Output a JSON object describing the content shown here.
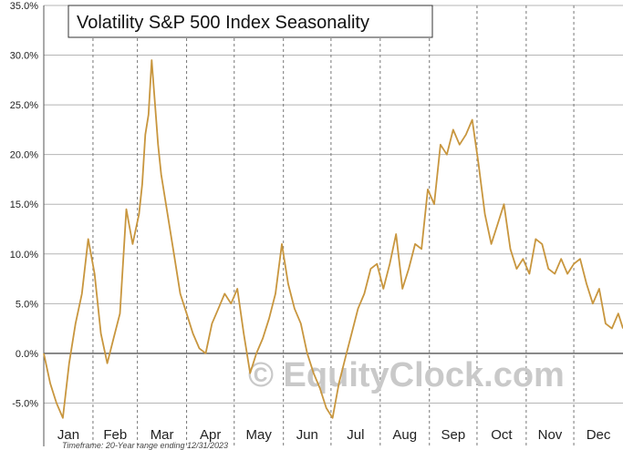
{
  "chart_data": {
    "type": "line",
    "title": "Volatility S&P 500 Index Seasonality",
    "footnote": "Timeframe: 20-Year range ending 12/31/2023",
    "watermark": "© EquityClock.com",
    "x_unit": "day of year",
    "months": [
      "Jan",
      "Feb",
      "Mar",
      "Apr",
      "May",
      "Jun",
      "Jul",
      "Aug",
      "Sep",
      "Oct",
      "Nov",
      "Dec"
    ],
    "y_ticks": [
      "35.0%",
      "30.0%",
      "25.0%",
      "20.0%",
      "15.0%",
      "10.0%",
      "5.0%",
      "0.0%",
      "-5.0%"
    ],
    "y_tick_values": [
      35,
      30,
      25,
      20,
      15,
      10,
      5,
      0,
      -5
    ],
    "ylim": [
      -10,
      35
    ],
    "xlim": [
      0,
      365
    ],
    "grid": true,
    "line_color": "#c8963e",
    "series": [
      {
        "x": [
          0,
          4,
          8,
          12,
          16,
          20,
          24,
          28,
          32,
          36,
          40,
          44,
          48,
          52,
          56,
          60,
          62,
          64,
          66,
          68,
          72,
          74,
          78,
          82,
          86,
          90,
          94,
          98,
          102,
          106,
          110,
          114,
          118,
          122,
          126,
          130,
          134,
          138,
          142,
          146,
          150,
          154,
          158,
          162,
          166,
          170,
          174,
          178,
          182,
          186,
          190,
          194,
          198,
          202,
          206,
          210,
          214,
          218,
          222,
          226,
          230,
          234,
          238,
          242,
          246,
          250,
          254,
          258,
          262,
          266,
          270,
          274,
          278,
          282,
          286,
          290,
          294,
          298,
          302,
          306,
          310,
          314,
          318,
          322,
          326,
          330,
          334,
          338,
          342,
          346,
          350,
          354,
          358,
          362,
          365
        ],
        "y": [
          0.0,
          -3.0,
          -5.0,
          -6.5,
          -1.0,
          3.0,
          6.0,
          11.5,
          8.0,
          2.0,
          -1.0,
          1.5,
          4.0,
          14.5,
          11.0,
          14.0,
          17.0,
          22.0,
          24.0,
          29.5,
          21.0,
          18.0,
          14.0,
          10.0,
          6.0,
          4.0,
          2.0,
          0.5,
          0.0,
          3.0,
          4.5,
          6.0,
          5.0,
          6.5,
          2.0,
          -2.0,
          0.0,
          1.5,
          3.5,
          6.0,
          11.0,
          7.0,
          4.5,
          3.0,
          0.0,
          -2.0,
          -3.5,
          -5.5,
          -6.5,
          -3.0,
          -0.5,
          2.0,
          4.5,
          6.0,
          8.5,
          9.0,
          6.5,
          9.0,
          12.0,
          6.5,
          8.5,
          11.0,
          10.5,
          16.5,
          15.0,
          21.0,
          20.0,
          22.5,
          21.0,
          22.0,
          23.5,
          19.0,
          14.0,
          11.0,
          13.0,
          15.0,
          10.5,
          8.5,
          9.5,
          8.0,
          11.5,
          11.0,
          8.5,
          8.0,
          9.5,
          8.0,
          9.0,
          9.5,
          7.0,
          5.0,
          6.5,
          3.0,
          2.5,
          4.0,
          2.5
        ]
      }
    ]
  }
}
